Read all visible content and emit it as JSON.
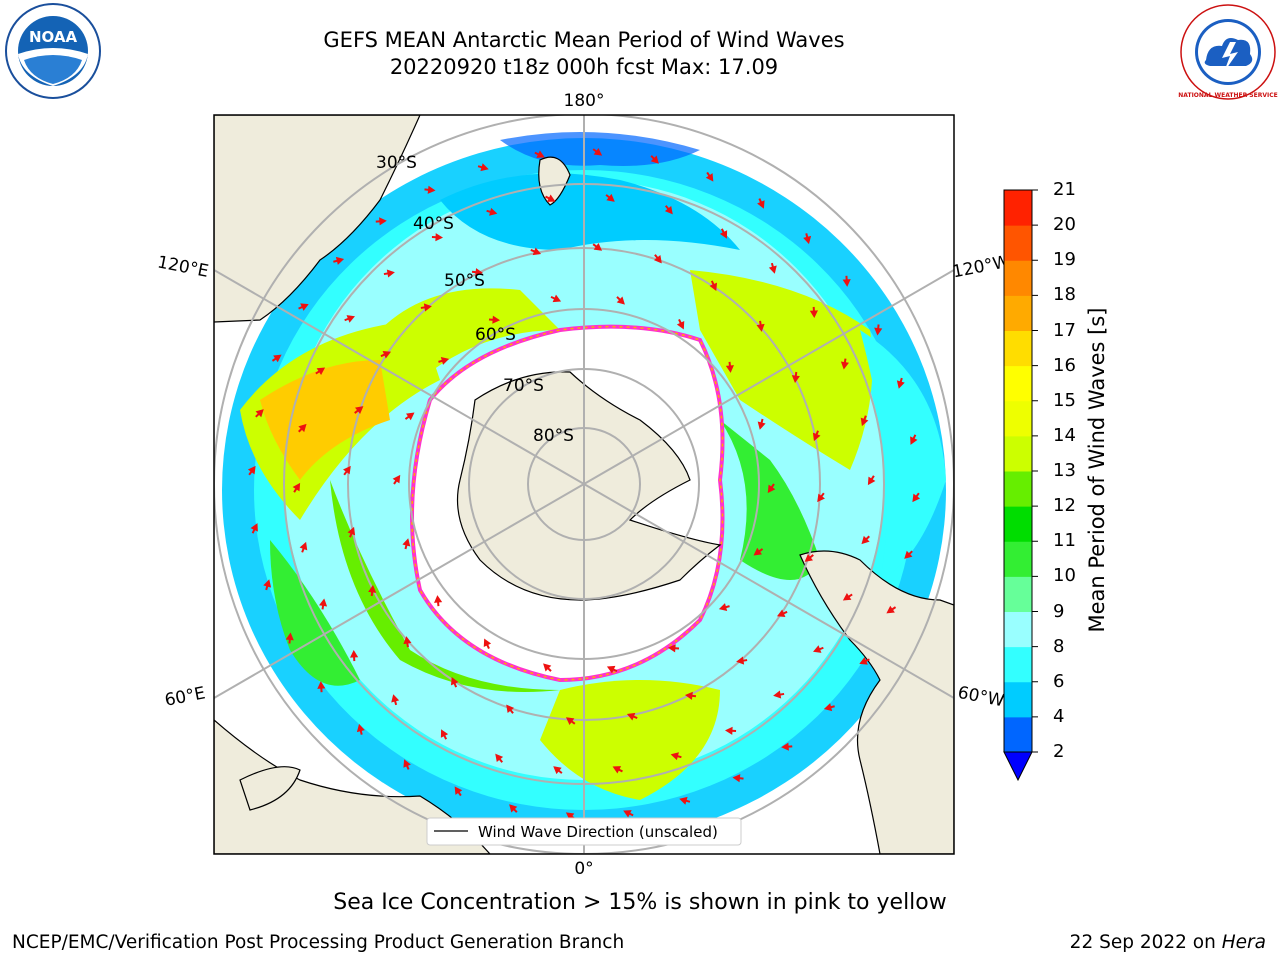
{
  "header": {
    "title_line1": "GEFS MEAN Antarctic Mean Period of Wind Waves",
    "title_line2": "20220920 t18z 000h fcst   Max: 17.09"
  },
  "map": {
    "projection": "south-polar-stereographic",
    "longitude_labels": [
      "180°",
      "120°E",
      "120°W",
      "60°E",
      "60°W",
      "0°"
    ],
    "latitude_labels": [
      "30°S",
      "40°S",
      "50°S",
      "60°S",
      "70°S",
      "80°S"
    ],
    "legend_label": "Wind Wave Direction (unscaled)",
    "land_color": "#efecdc",
    "ice_edge_colors": [
      "#ff33cc",
      "#ffaa00"
    ]
  },
  "colorbar": {
    "title": "Mean Period of Wind Waves [s]",
    "tick_labels": [
      "2",
      "4",
      "6",
      "8",
      "9",
      "10",
      "11",
      "12",
      "13",
      "14",
      "15",
      "16",
      "17",
      "18",
      "19",
      "20",
      "21"
    ],
    "colors": [
      "#0066ff",
      "#00ccff",
      "#33ffff",
      "#99ffff",
      "#66ff99",
      "#33ee33",
      "#00dd00",
      "#66ee00",
      "#ccff00",
      "#eeff00",
      "#ffff00",
      "#ffdd00",
      "#ffaa00",
      "#ff8800",
      "#ff5500",
      "#ff2200"
    ],
    "extend_color": "#0000ff"
  },
  "caption": "Sea Ice Concentration > 15% is shown in pink to yellow",
  "footer": {
    "left": "NCEP/EMC/Verification Post Processing Product Generation Branch",
    "right_date": "22 Sep 2022 on",
    "right_host": "Hera"
  },
  "logos": {
    "left": {
      "text": "NOAA"
    },
    "right": {
      "text": "NATIONAL WEATHER SERVICE"
    }
  }
}
